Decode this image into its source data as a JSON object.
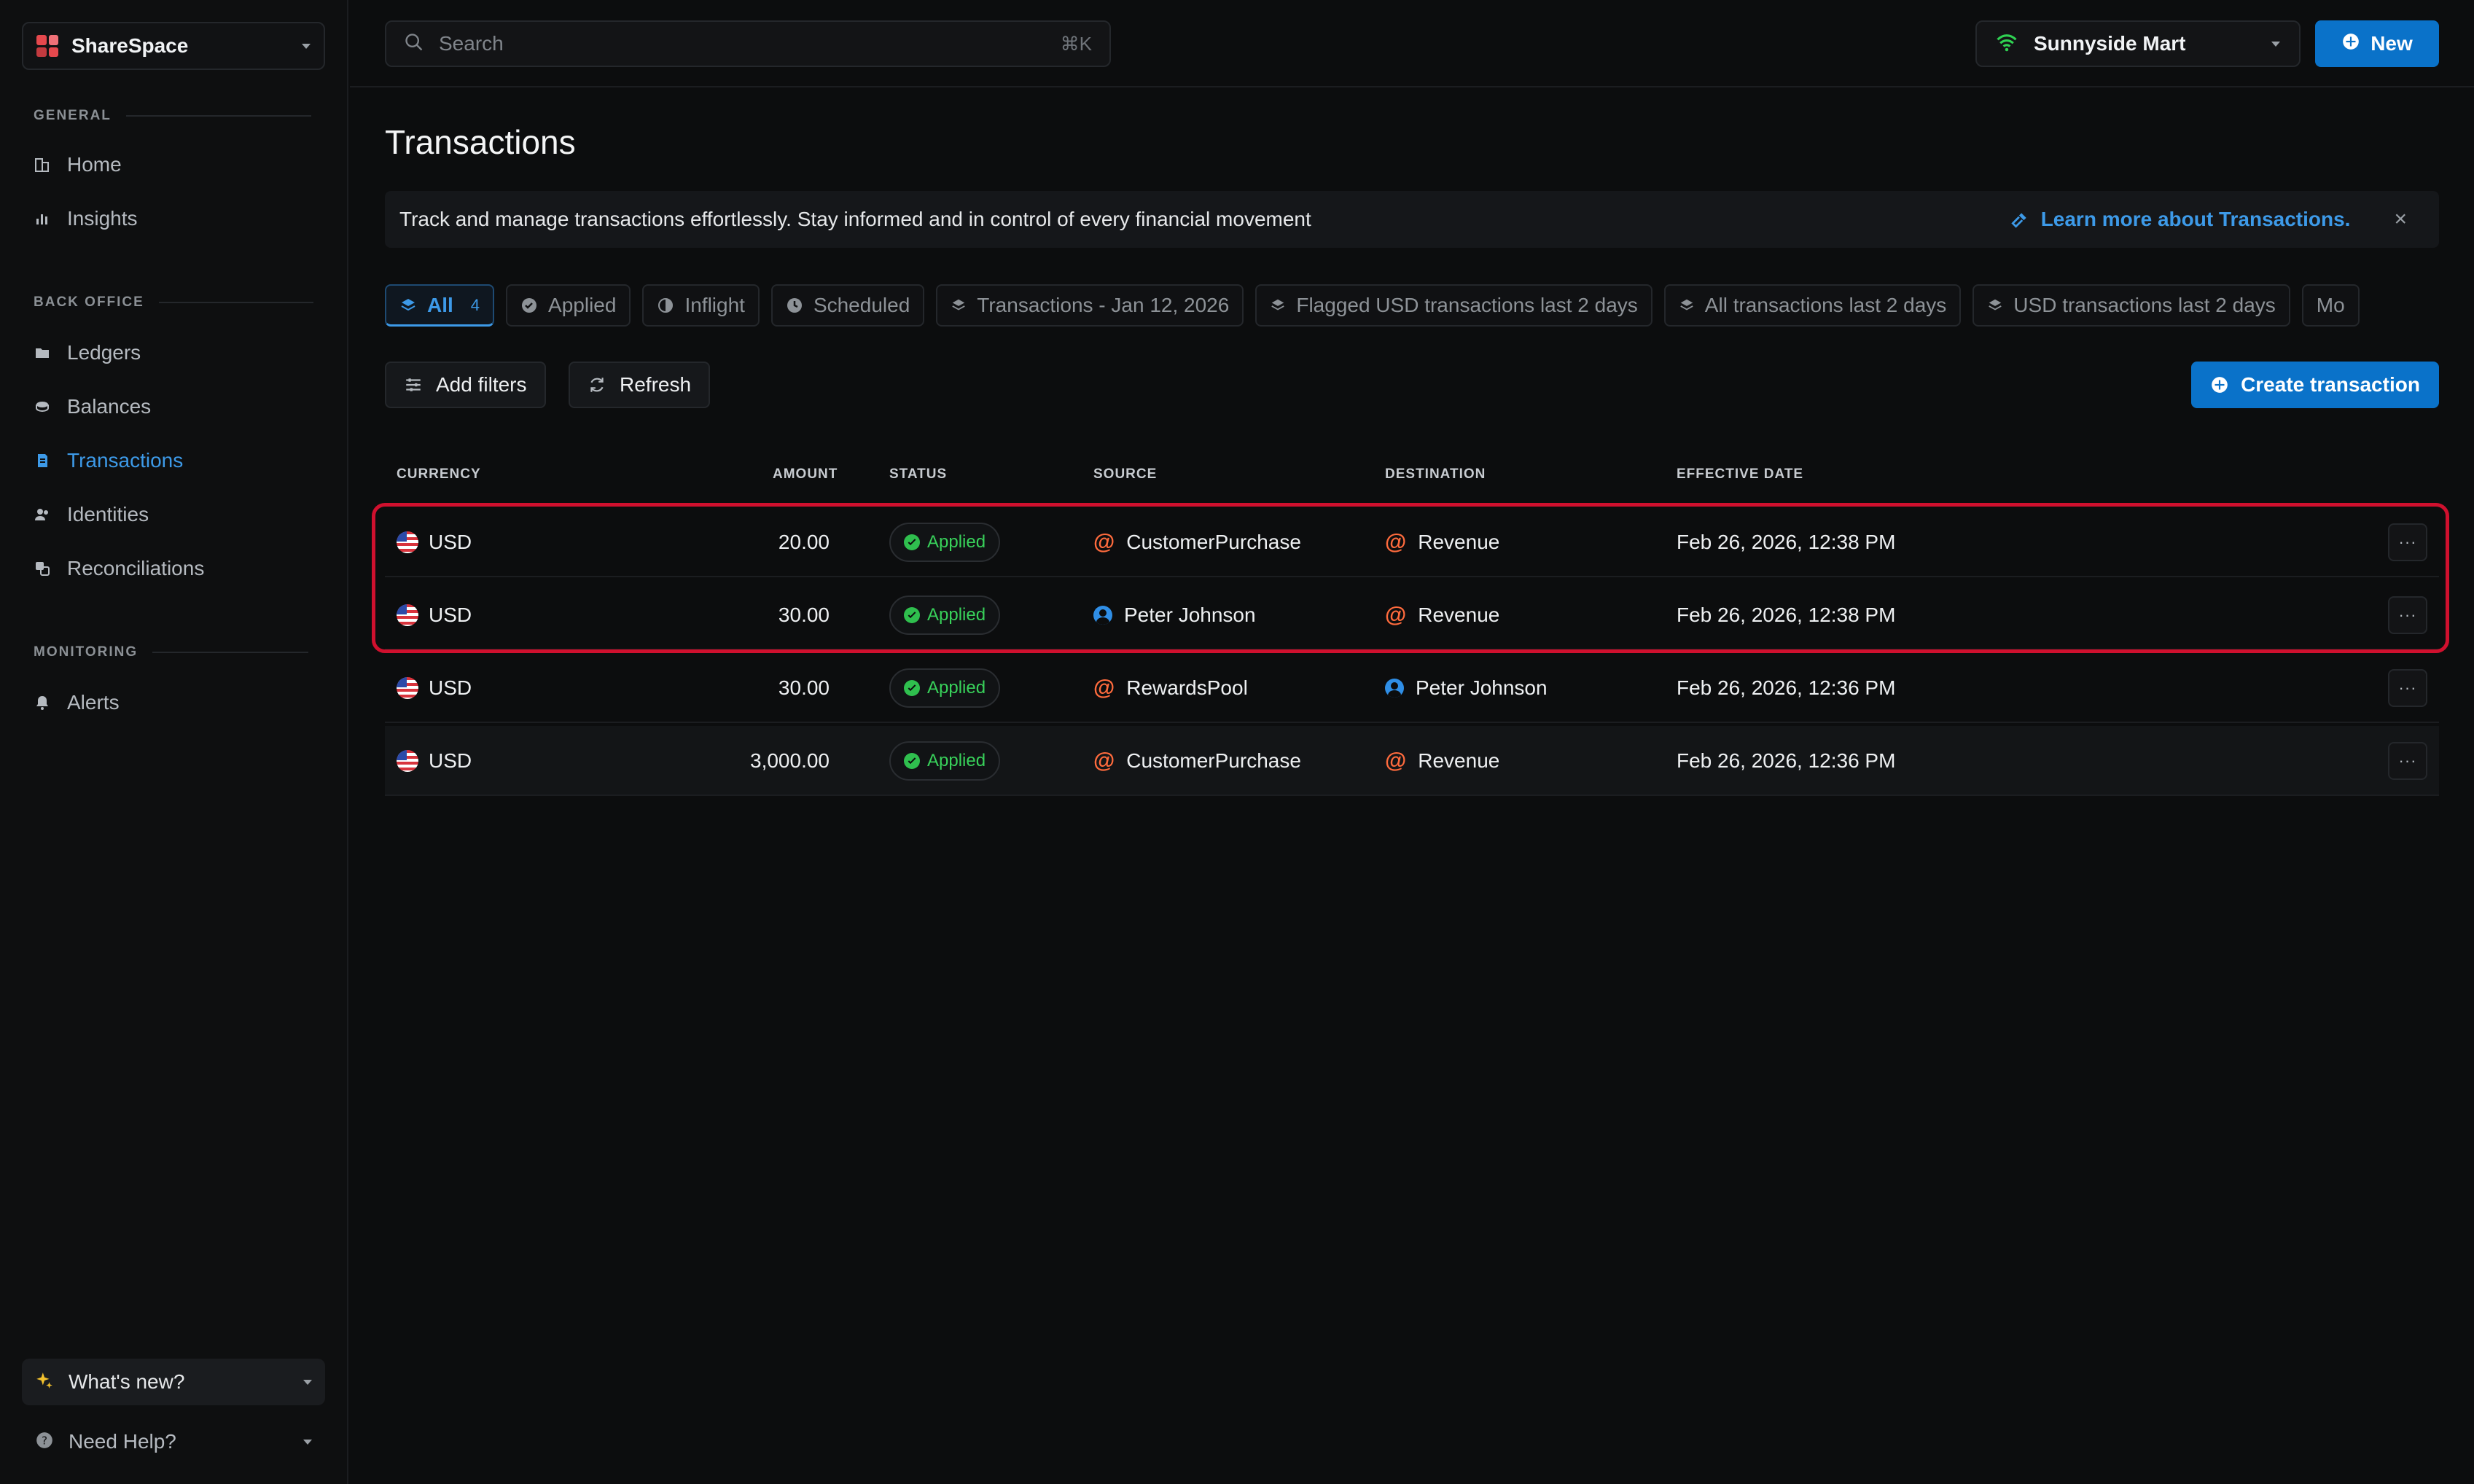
{
  "workspace": {
    "name": "ShareSpace"
  },
  "sidebar": {
    "sections": [
      {
        "label": "GENERAL",
        "items": [
          {
            "label": "Home",
            "icon": "building-icon"
          },
          {
            "label": "Insights",
            "icon": "chart-icon"
          }
        ]
      },
      {
        "label": "BACK OFFICE",
        "items": [
          {
            "label": "Ledgers",
            "icon": "folder-icon"
          },
          {
            "label": "Balances",
            "icon": "coins-icon"
          },
          {
            "label": "Transactions",
            "icon": "transactions-icon"
          },
          {
            "label": "Identities",
            "icon": "users-icon"
          },
          {
            "label": "Reconciliations",
            "icon": "reconcile-icon"
          }
        ]
      },
      {
        "label": "MONITORING",
        "items": [
          {
            "label": "Alerts",
            "icon": "bell-icon"
          }
        ]
      }
    ],
    "whats_new": "What's new?",
    "need_help": "Need Help?"
  },
  "topbar": {
    "search_placeholder": "Search",
    "search_shortcut": "⌘K",
    "org_name": "Sunnyside Mart",
    "new_label": "New"
  },
  "page": {
    "title": "Transactions",
    "banner_text": "Track and manage transactions effortlessly. Stay informed and in control of every financial movement",
    "banner_link": "Learn more about Transactions.",
    "banner_close": "×"
  },
  "tabs": [
    {
      "label": "All",
      "count": "4"
    },
    {
      "label": "Applied"
    },
    {
      "label": "Inflight"
    },
    {
      "label": "Scheduled"
    },
    {
      "label": "Transactions - Jan 12, 2026"
    },
    {
      "label": "Flagged USD transactions last 2 days"
    },
    {
      "label": "All transactions last 2 days"
    },
    {
      "label": "USD transactions last 2 days"
    },
    {
      "label": "Mo"
    }
  ],
  "toolbar": {
    "add_filters": "Add filters",
    "refresh": "Refresh",
    "create": "Create transaction"
  },
  "table": {
    "columns": [
      "CURRENCY",
      "AMOUNT",
      "STATUS",
      "SOURCE",
      "DESTINATION",
      "EFFECTIVE DATE"
    ],
    "rows": [
      {
        "currency": "USD",
        "amount": "20.00",
        "status": "Applied",
        "source": "CustomerPurchase",
        "source_type": "ledger",
        "destination": "Revenue",
        "destination_type": "ledger",
        "date": "Feb 26, 2026, 12:38 PM",
        "more": "···"
      },
      {
        "currency": "USD",
        "amount": "30.00",
        "status": "Applied",
        "source": "Peter Johnson",
        "source_type": "identity",
        "destination": "Revenue",
        "destination_type": "ledger",
        "date": "Feb 26, 2026, 12:38 PM",
        "more": "···"
      },
      {
        "currency": "USD",
        "amount": "30.00",
        "status": "Applied",
        "source": "RewardsPool",
        "source_type": "ledger",
        "destination": "Peter Johnson",
        "destination_type": "identity",
        "date": "Feb 26, 2026, 12:36 PM",
        "more": "···"
      },
      {
        "currency": "USD",
        "amount": "3,000.00",
        "status": "Applied",
        "source": "CustomerPurchase",
        "source_type": "ledger",
        "destination": "Revenue",
        "destination_type": "ledger",
        "date": "Feb 26, 2026, 12:36 PM",
        "more": "···"
      }
    ]
  },
  "colors": {
    "accent": "#0a72c9",
    "link": "#3d9ae8",
    "success": "#38d15a",
    "ledger_at": "#ff6b3d",
    "highlight": "#d0102e"
  }
}
